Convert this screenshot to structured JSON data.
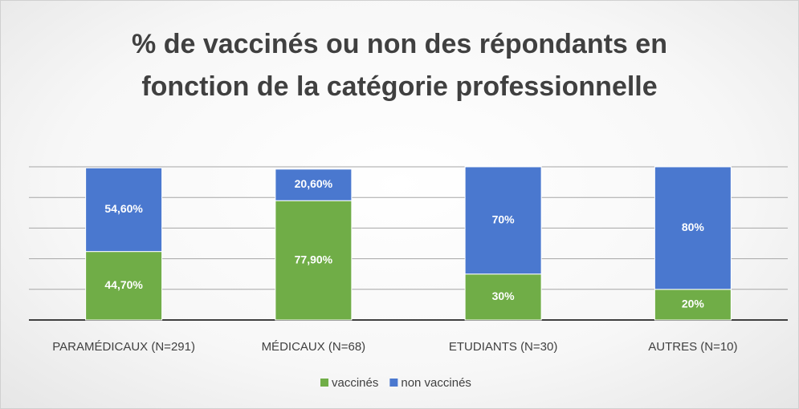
{
  "chart_data": {
    "type": "stacked_bar",
    "title": "% de vaccinés ou non des répondants en fonction de la catégorie professionnelle",
    "categories": [
      "PARAMÉDICAUX (N=291)",
      "MÉDICAUX (N=68)",
      "ETUDIANTS (N=30)",
      "AUTRES (N=10)"
    ],
    "series": [
      {
        "name": "vaccinés",
        "color": "#70ad47",
        "values": [
          44.7,
          77.9,
          30,
          20
        ],
        "value_labels": [
          "44,70%",
          "77,90%",
          "30%",
          "20%"
        ]
      },
      {
        "name": "non vaccinés",
        "color": "#4a78cf",
        "values": [
          54.6,
          20.6,
          70,
          80
        ],
        "value_labels": [
          "54,60%",
          "20,60%",
          "70%",
          "80%"
        ]
      }
    ],
    "ylim": [
      0,
      100
    ],
    "yticks": [
      0,
      20,
      40,
      60,
      80,
      100
    ],
    "grid": true,
    "legend": "bottom"
  }
}
